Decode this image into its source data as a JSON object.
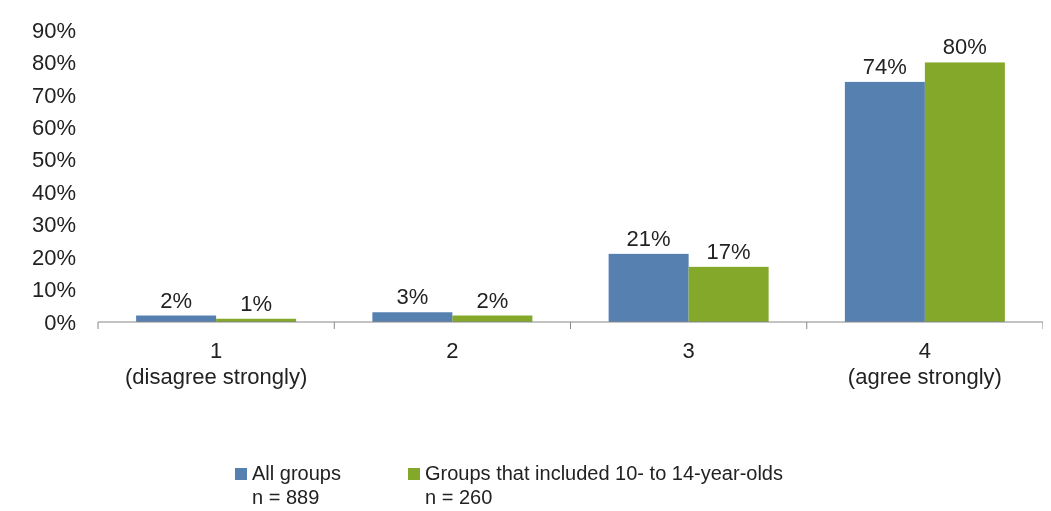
{
  "chart_data": {
    "type": "bar",
    "categories": [
      "1\n(disagree strongly)",
      "2",
      "3",
      "4\n(agree strongly)"
    ],
    "series": [
      {
        "name": "All groups\nn = 889",
        "color": "#5580b0",
        "values": [
          2,
          3,
          21,
          74
        ],
        "value_labels": [
          "2%",
          "3%",
          "21%",
          "74%"
        ]
      },
      {
        "name": "Groups that included 10- to 14-year-olds\nn = 260",
        "color": "#84a82a",
        "values": [
          1,
          2,
          17,
          80
        ],
        "value_labels": [
          "1%",
          "2%",
          "17%",
          "80%"
        ]
      }
    ],
    "ylim": [
      0,
      90
    ],
    "yticks": [
      {
        "value": 0,
        "label": "0%"
      },
      {
        "value": 10,
        "label": "10%"
      },
      {
        "value": 20,
        "label": "20%"
      },
      {
        "value": 30,
        "label": "30%"
      },
      {
        "value": 40,
        "label": "40%"
      },
      {
        "value": 50,
        "label": "50%"
      },
      {
        "value": 60,
        "label": "60%"
      },
      {
        "value": 70,
        "label": "70%"
      },
      {
        "value": 80,
        "label": "80%"
      },
      {
        "value": 90,
        "label": "90%"
      }
    ],
    "grid": false,
    "legend": "bottom"
  }
}
